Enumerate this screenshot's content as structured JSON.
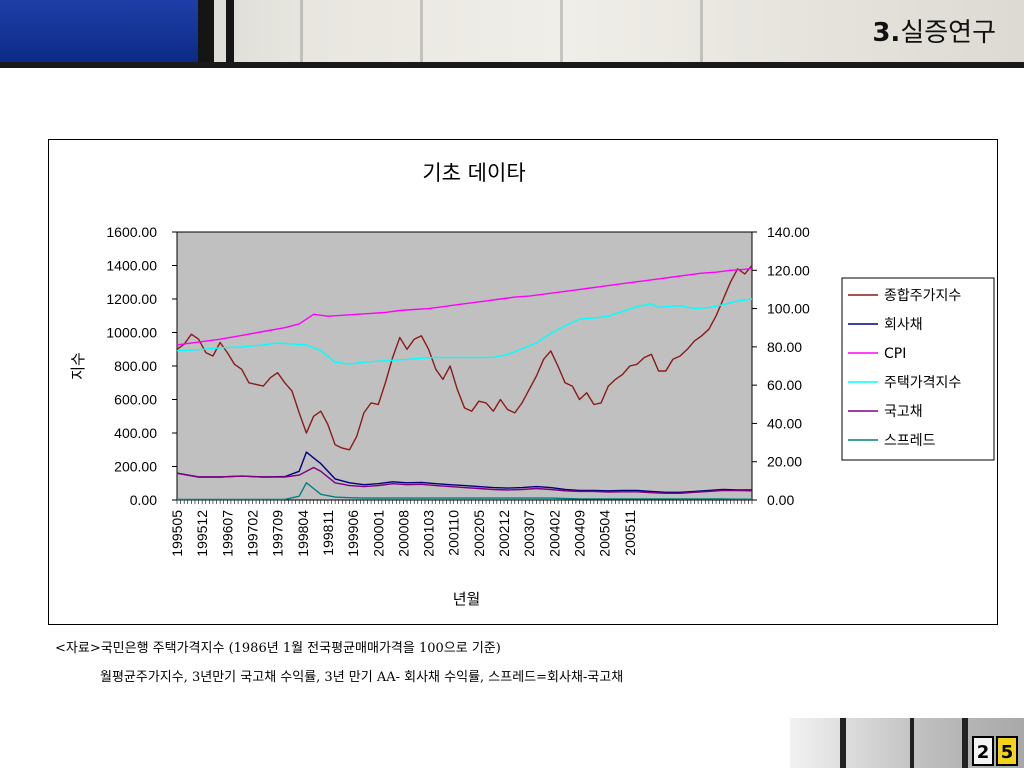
{
  "header": {
    "section_num": "3.",
    "section_title": "실증연구"
  },
  "colors": {
    "plot_bg": "#c0c0c0",
    "kospi": "#8b1a1a",
    "corp_bond": "#000080",
    "cpi": "#ff00ff",
    "housing": "#00ffff",
    "gov_bond": "#800080",
    "spread": "#008080"
  },
  "chart_data": {
    "type": "line",
    "title": "기초 데이타",
    "xlabel": "년월",
    "ylabel": "지수",
    "ylim_left": [
      0,
      1600
    ],
    "ylim_right": [
      0,
      140
    ],
    "left_ticks": [
      "0.00",
      "200.00",
      "400.00",
      "600.00",
      "800.00",
      "1000.00",
      "1200.00",
      "1400.00",
      "1600.00"
    ],
    "right_ticks": [
      "0.00",
      "20.00",
      "40.00",
      "60.00",
      "80.00",
      "100.00",
      "120.00",
      "140.00"
    ],
    "x_tick_labels": [
      "199505",
      "199512",
      "199607",
      "199702",
      "199709",
      "199804",
      "199811",
      "199906",
      "200001",
      "200008",
      "200103",
      "200110",
      "200205",
      "200212",
      "200307",
      "200402",
      "200409",
      "200504",
      "200511"
    ],
    "x_range": [
      "199505",
      "200605"
    ],
    "legend_position": "right",
    "series": [
      {
        "name": "종합주가지수",
        "axis": "left",
        "color_key": "kospi",
        "points": [
          [
            0,
            900
          ],
          [
            2,
            930
          ],
          [
            4,
            990
          ],
          [
            6,
            960
          ],
          [
            8,
            880
          ],
          [
            10,
            860
          ],
          [
            12,
            940
          ],
          [
            14,
            880
          ],
          [
            16,
            810
          ],
          [
            18,
            780
          ],
          [
            20,
            700
          ],
          [
            22,
            690
          ],
          [
            24,
            680
          ],
          [
            26,
            730
          ],
          [
            28,
            760
          ],
          [
            30,
            700
          ],
          [
            32,
            650
          ],
          [
            34,
            520
          ],
          [
            36,
            400
          ],
          [
            38,
            500
          ],
          [
            40,
            530
          ],
          [
            42,
            450
          ],
          [
            44,
            330
          ],
          [
            46,
            310
          ],
          [
            48,
            300
          ],
          [
            50,
            380
          ],
          [
            52,
            520
          ],
          [
            54,
            580
          ],
          [
            56,
            570
          ],
          [
            58,
            700
          ],
          [
            60,
            850
          ],
          [
            62,
            970
          ],
          [
            64,
            900
          ],
          [
            66,
            960
          ],
          [
            68,
            980
          ],
          [
            70,
            900
          ],
          [
            72,
            780
          ],
          [
            74,
            720
          ],
          [
            76,
            800
          ],
          [
            78,
            660
          ],
          [
            80,
            550
          ],
          [
            82,
            530
          ],
          [
            84,
            590
          ],
          [
            86,
            580
          ],
          [
            88,
            530
          ],
          [
            90,
            600
          ],
          [
            92,
            540
          ],
          [
            94,
            520
          ],
          [
            96,
            580
          ],
          [
            98,
            660
          ],
          [
            100,
            740
          ],
          [
            102,
            840
          ],
          [
            104,
            890
          ],
          [
            106,
            800
          ],
          [
            108,
            700
          ],
          [
            110,
            680
          ],
          [
            112,
            600
          ],
          [
            114,
            640
          ],
          [
            116,
            570
          ],
          [
            118,
            580
          ],
          [
            120,
            680
          ],
          [
            122,
            720
          ],
          [
            124,
            750
          ],
          [
            126,
            800
          ],
          [
            128,
            810
          ],
          [
            130,
            850
          ],
          [
            132,
            870
          ],
          [
            134,
            770
          ],
          [
            136,
            770
          ],
          [
            138,
            840
          ],
          [
            140,
            860
          ],
          [
            142,
            900
          ],
          [
            144,
            950
          ],
          [
            146,
            980
          ],
          [
            148,
            1020
          ],
          [
            150,
            1100
          ],
          [
            152,
            1200
          ],
          [
            154,
            1300
          ],
          [
            156,
            1380
          ],
          [
            158,
            1350
          ],
          [
            160,
            1400
          ]
        ]
      },
      {
        "name": "회사채",
        "axis": "right",
        "color_key": "corp_bond",
        "points": [
          [
            0,
            14
          ],
          [
            6,
            12
          ],
          [
            12,
            12
          ],
          [
            18,
            12.5
          ],
          [
            24,
            12
          ],
          [
            30,
            12.2
          ],
          [
            34,
            15
          ],
          [
            36,
            25
          ],
          [
            38,
            22
          ],
          [
            40,
            19
          ],
          [
            44,
            11
          ],
          [
            48,
            9
          ],
          [
            52,
            8
          ],
          [
            56,
            8.5
          ],
          [
            60,
            9.5
          ],
          [
            64,
            9
          ],
          [
            68,
            9.2
          ],
          [
            72,
            8.5
          ],
          [
            76,
            8
          ],
          [
            80,
            7.5
          ],
          [
            84,
            7
          ],
          [
            88,
            6.5
          ],
          [
            92,
            6.2
          ],
          [
            96,
            6.5
          ],
          [
            100,
            7
          ],
          [
            104,
            6.5
          ],
          [
            108,
            5.5
          ],
          [
            112,
            5
          ],
          [
            116,
            5
          ],
          [
            120,
            4.8
          ],
          [
            124,
            5
          ],
          [
            128,
            5
          ],
          [
            132,
            4.5
          ],
          [
            136,
            4
          ],
          [
            140,
            4
          ],
          [
            144,
            4.5
          ],
          [
            148,
            5
          ],
          [
            152,
            5.5
          ],
          [
            156,
            5.3
          ],
          [
            160,
            5.2
          ]
        ]
      },
      {
        "name": "CPI",
        "axis": "right",
        "color_key": "cpi",
        "points": [
          [
            0,
            81
          ],
          [
            6,
            82.5
          ],
          [
            12,
            84
          ],
          [
            18,
            86
          ],
          [
            24,
            88
          ],
          [
            30,
            90
          ],
          [
            34,
            92
          ],
          [
            38,
            97
          ],
          [
            42,
            96
          ],
          [
            46,
            96.5
          ],
          [
            50,
            97
          ],
          [
            54,
            97.5
          ],
          [
            58,
            98
          ],
          [
            62,
            99
          ],
          [
            66,
            99.5
          ],
          [
            70,
            100
          ],
          [
            74,
            101
          ],
          [
            78,
            102
          ],
          [
            82,
            103
          ],
          [
            86,
            104
          ],
          [
            90,
            105
          ],
          [
            94,
            106
          ],
          [
            98,
            106.5
          ],
          [
            102,
            107.5
          ],
          [
            106,
            108.5
          ],
          [
            110,
            109.5
          ],
          [
            114,
            110.5
          ],
          [
            118,
            111.5
          ],
          [
            122,
            112.5
          ],
          [
            126,
            113.5
          ],
          [
            130,
            114.5
          ],
          [
            134,
            115.5
          ],
          [
            138,
            116.5
          ],
          [
            142,
            117.5
          ],
          [
            146,
            118.5
          ],
          [
            150,
            119
          ],
          [
            154,
            120
          ],
          [
            158,
            120.5
          ],
          [
            160,
            121
          ]
        ]
      },
      {
        "name": "주택가격지수",
        "axis": "right",
        "color_key": "housing",
        "points": [
          [
            0,
            78
          ],
          [
            6,
            78.5
          ],
          [
            12,
            79.5
          ],
          [
            18,
            80
          ],
          [
            24,
            81
          ],
          [
            28,
            82
          ],
          [
            32,
            81.5
          ],
          [
            36,
            81
          ],
          [
            40,
            78
          ],
          [
            44,
            72
          ],
          [
            48,
            71
          ],
          [
            52,
            72
          ],
          [
            56,
            72.5
          ],
          [
            60,
            73
          ],
          [
            64,
            73.5
          ],
          [
            68,
            74
          ],
          [
            72,
            74.5
          ],
          [
            76,
            74.5
          ],
          [
            80,
            74.5
          ],
          [
            84,
            74.5
          ],
          [
            88,
            74.5
          ],
          [
            92,
            76
          ],
          [
            96,
            79
          ],
          [
            100,
            82
          ],
          [
            104,
            87
          ],
          [
            108,
            91
          ],
          [
            112,
            94.5
          ],
          [
            116,
            95
          ],
          [
            120,
            96
          ],
          [
            124,
            98.5
          ],
          [
            128,
            101
          ],
          [
            132,
            102.5
          ],
          [
            134,
            100.5
          ],
          [
            136,
            101
          ],
          [
            140,
            101.5
          ],
          [
            144,
            100
          ],
          [
            148,
            100.5
          ],
          [
            152,
            102
          ],
          [
            156,
            104
          ],
          [
            160,
            105
          ]
        ]
      },
      {
        "name": "국고채",
        "axis": "right",
        "color_key": "gov_bond",
        "points": [
          [
            0,
            14
          ],
          [
            6,
            12
          ],
          [
            12,
            12
          ],
          [
            18,
            12.5
          ],
          [
            24,
            12
          ],
          [
            30,
            12
          ],
          [
            34,
            13
          ],
          [
            38,
            17
          ],
          [
            40,
            15
          ],
          [
            44,
            9
          ],
          [
            48,
            7.5
          ],
          [
            52,
            7
          ],
          [
            56,
            7.5
          ],
          [
            60,
            8.5
          ],
          [
            64,
            8
          ],
          [
            68,
            8.2
          ],
          [
            72,
            7.5
          ],
          [
            76,
            7
          ],
          [
            80,
            6.5
          ],
          [
            84,
            6
          ],
          [
            88,
            5.5
          ],
          [
            92,
            5.2
          ],
          [
            96,
            5.5
          ],
          [
            100,
            6
          ],
          [
            104,
            5.5
          ],
          [
            108,
            4.8
          ],
          [
            112,
            4.5
          ],
          [
            116,
            4.5
          ],
          [
            120,
            4.2
          ],
          [
            124,
            4.3
          ],
          [
            128,
            4.3
          ],
          [
            132,
            3.8
          ],
          [
            136,
            3.5
          ],
          [
            140,
            3.5
          ],
          [
            144,
            4
          ],
          [
            148,
            4.5
          ],
          [
            152,
            5
          ],
          [
            156,
            4.9
          ],
          [
            160,
            4.8
          ]
        ]
      },
      {
        "name": "스프레드",
        "axis": "right",
        "color_key": "spread",
        "points": [
          [
            0,
            0.3
          ],
          [
            6,
            0.3
          ],
          [
            12,
            0.3
          ],
          [
            18,
            0.3
          ],
          [
            24,
            0.3
          ],
          [
            30,
            0.3
          ],
          [
            34,
            2
          ],
          [
            36,
            9
          ],
          [
            38,
            6
          ],
          [
            40,
            3
          ],
          [
            44,
            1.5
          ],
          [
            48,
            1.2
          ],
          [
            52,
            1
          ],
          [
            56,
            1
          ],
          [
            60,
            1
          ],
          [
            64,
            1
          ],
          [
            68,
            1
          ],
          [
            72,
            1
          ],
          [
            76,
            1
          ],
          [
            80,
            1
          ],
          [
            84,
            1
          ],
          [
            88,
            1
          ],
          [
            92,
            1
          ],
          [
            96,
            1
          ],
          [
            100,
            1
          ],
          [
            104,
            1
          ],
          [
            108,
            0.8
          ],
          [
            112,
            0.6
          ],
          [
            116,
            0.6
          ],
          [
            120,
            0.6
          ],
          [
            124,
            0.6
          ],
          [
            128,
            0.6
          ],
          [
            132,
            0.6
          ],
          [
            136,
            0.6
          ],
          [
            140,
            0.5
          ],
          [
            144,
            0.5
          ],
          [
            148,
            0.5
          ],
          [
            152,
            0.5
          ],
          [
            156,
            0.4
          ],
          [
            160,
            0.4
          ]
        ]
      }
    ]
  },
  "notes": {
    "line1": "<자료>국민은행 주택가격지수 (1986년 1월 전국평균매매가격을 100으로 기준)",
    "line2": "월평균주가지수, 3년만기 국고채 수익률, 3년 만기 AA- 회사채 수익률, 스프레드=회사채-국고채"
  },
  "footer": {
    "page_digit_1": "2",
    "page_digit_2": "5"
  }
}
